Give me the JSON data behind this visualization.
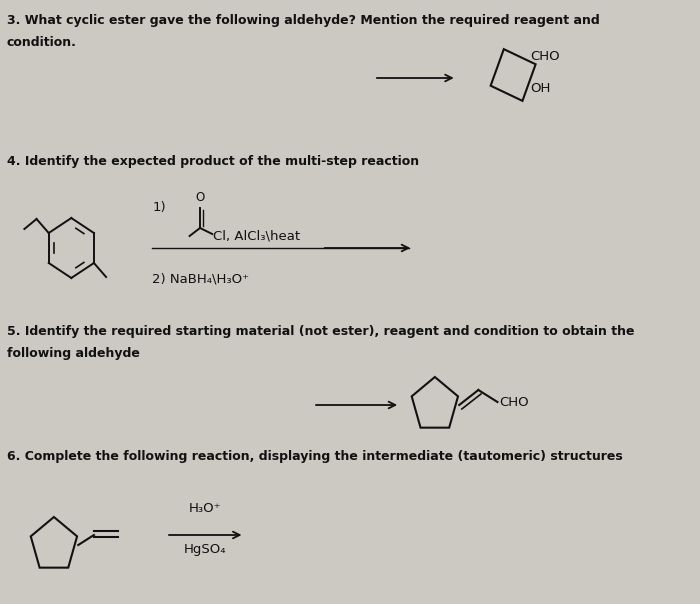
{
  "bg_color": "#ccc9c2",
  "text_color": "#111111",
  "q3_line1": "3. What cyclic ester gave the following aldehyde? Mention the required reagent and",
  "q3_line2": "condition.",
  "q4_line1": "4. Identify the expected product of the multi-step reaction",
  "q5_line1": "5. Identify the required starting material (not ester), reagent and condition to obtain the",
  "q5_line2": "following aldehyde",
  "q6_line1": "6. Complete the following reaction, displaying the intermediate (tautomeric) structures",
  "q6_reagent1": "H₃O⁺",
  "q6_reagent2": "HgSO₄",
  "font_size_q": 9.0
}
